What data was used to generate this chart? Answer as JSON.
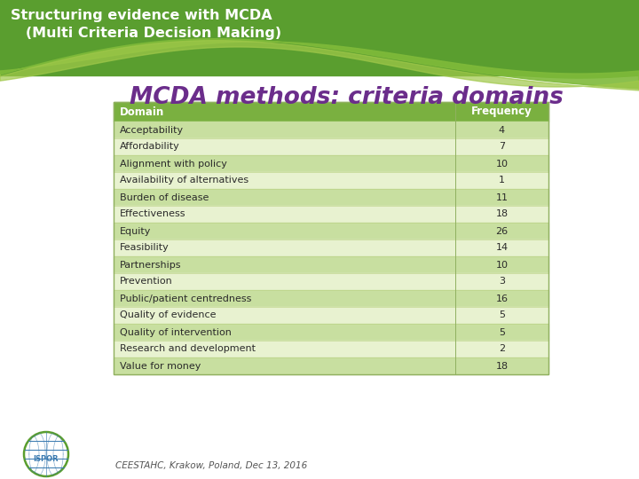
{
  "title": "MCDA methods: criteria domains",
  "header_title_line1": "Structuring evidence with MCDA",
  "header_title_line2": "   (Multi Criteria Decision Making)",
  "domains": [
    "Acceptability",
    "Affordability",
    "Alignment with policy",
    "Availability of alternatives",
    "Burden of disease",
    "Effectiveness",
    "Equity",
    "Feasibility",
    "Partnerships",
    "Prevention",
    "Public/patient centredness",
    "Quality of evidence",
    "Quality of intervention",
    "Research and development",
    "Value for money"
  ],
  "frequencies": [
    4,
    7,
    10,
    1,
    11,
    18,
    26,
    14,
    10,
    3,
    16,
    5,
    5,
    2,
    18
  ],
  "col_header": [
    "Domain",
    "Frequency"
  ],
  "footer": "CEESTAHC, Krakow, Poland, Dec 13, 2016",
  "bg_color": "#ffffff",
  "banner_dark_green": "#5a9e2f",
  "banner_light_green": "#7fba3a",
  "wave_light_green": "#a0c84a",
  "table_header_bg": "#7ab040",
  "table_row_odd": "#c8dfa0",
  "table_row_even": "#e8f2d0",
  "table_header_text": "#ffffff",
  "table_text": "#2a2a2a",
  "title_color": "#6b2d8b",
  "header_title_color": "#ffffff",
  "table_border_color": "#90b060",
  "footer_color": "#555555"
}
